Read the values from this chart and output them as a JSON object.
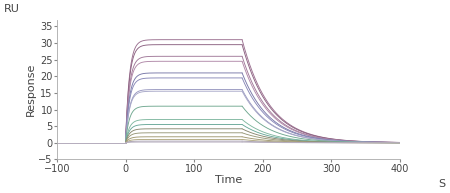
{
  "xlabel": "Time",
  "ylabel": "Response",
  "xlabel_suffix": "S",
  "ylabel_prefix": "RU",
  "xlim": [
    -100,
    400
  ],
  "ylim": [
    -5,
    37
  ],
  "xticks": [
    -100,
    0,
    100,
    200,
    300,
    400
  ],
  "yticks": [
    -5,
    0,
    5,
    10,
    15,
    20,
    25,
    30,
    35
  ],
  "association_start": 0,
  "association_end": 170,
  "dissociation_end": 400,
  "rmax_values": [
    31.0,
    29.5,
    26.0,
    24.5,
    21.0,
    19.5,
    16.0,
    15.5,
    11.0,
    7.0,
    5.5,
    4.2,
    3.0,
    1.8,
    1.0,
    0.5,
    0.2
  ],
  "kon": 0.18,
  "koff": 0.025,
  "baseline": 0.0,
  "colors": [
    "#9B7090",
    "#8B6080",
    "#A07898",
    "#B088A8",
    "#7878A8",
    "#8888B8",
    "#9898C0",
    "#A8A8C8",
    "#70A890",
    "#80B8A0",
    "#68A898",
    "#888870",
    "#989878",
    "#A09870",
    "#B0A880",
    "#A8A0B0",
    "#B8B0C0"
  ],
  "figsize": [
    4.5,
    1.93
  ],
  "dpi": 100,
  "tick_fontsize": 7,
  "label_fontsize": 8
}
